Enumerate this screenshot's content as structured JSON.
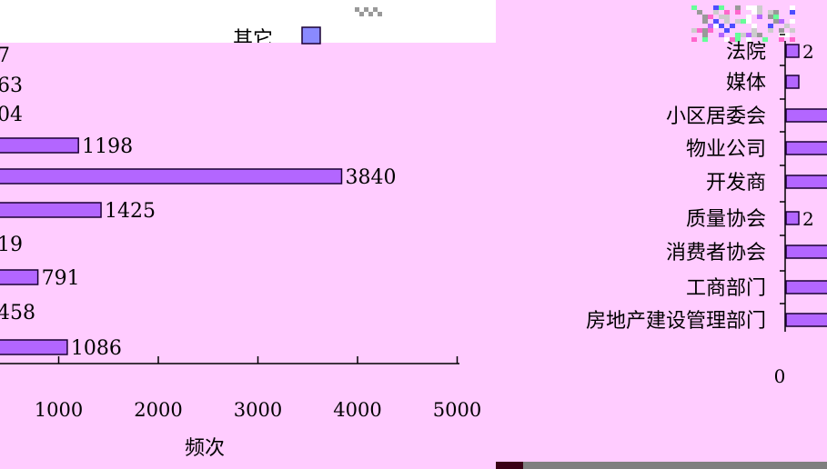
{
  "colors": {
    "left_plot_bg": "#ffccff",
    "right_plot_bg": "#ffccff",
    "bar_fill": "#b366ff",
    "bar_stroke": "#1a0033",
    "bottom_strip": "#7f7f7f",
    "bottom_strip_dark": "#3a0016"
  },
  "top_fragment": "其它",
  "chart_data": [
    {
      "type": "bar",
      "orientation": "horizontal",
      "xlabel": "频次",
      "xlim": [
        0,
        5000
      ],
      "x_ticks": [
        1000,
        2000,
        3000,
        4000,
        5000
      ],
      "value_labels": [
        "7",
        "63",
        "04",
        "1198",
        "3840",
        "1425",
        "19",
        "791",
        "458",
        "1086"
      ],
      "values": [
        null,
        null,
        null,
        1198,
        3840,
        1425,
        null,
        791,
        null,
        1086
      ],
      "grid": false,
      "legend": "none"
    },
    {
      "type": "bar",
      "orientation": "horizontal",
      "categories": [
        "法院",
        "媒体",
        "小区居委会",
        "物业公司",
        "开发商",
        "质量协会",
        "消费者协会",
        "工商部门",
        "房地产建设管理部门"
      ],
      "value_labels": [
        "2",
        "",
        "",
        "",
        "",
        "2",
        "",
        "",
        ""
      ],
      "x_ticks": [
        0
      ],
      "grid": false,
      "legend": "none"
    }
  ]
}
